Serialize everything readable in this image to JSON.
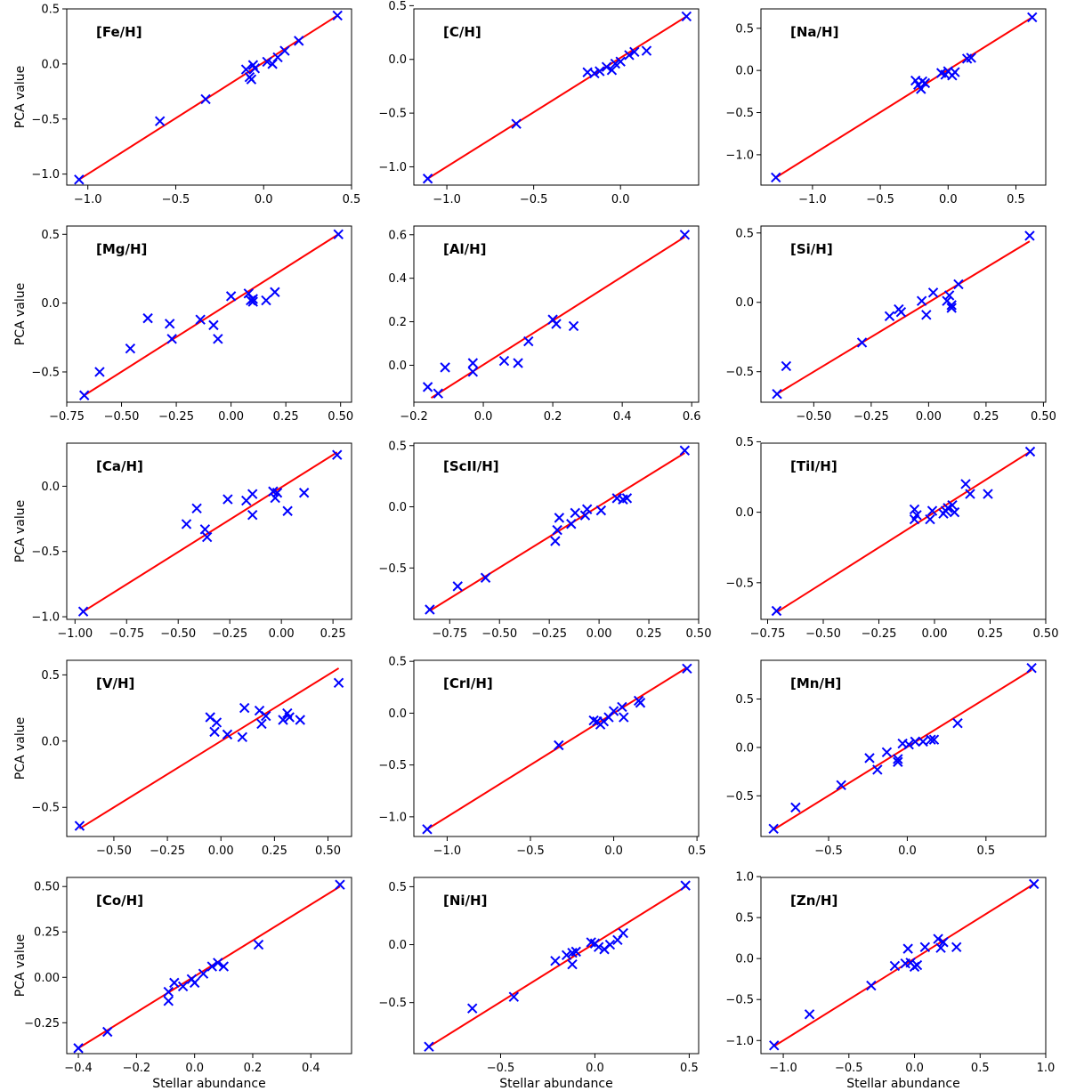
{
  "figure": {
    "xlabel": "Stellar abundance",
    "ylabel": "PCA value"
  },
  "colors": {
    "points": "#0000ff",
    "fit_line": "#ff0000",
    "axes": "#000000"
  },
  "chart_data": [
    {
      "type": "scatter",
      "label": "[Fe/H]",
      "xlim": [
        -1.12,
        0.5
      ],
      "ylim": [
        -1.1,
        0.5
      ],
      "xticks": [
        -1.0,
        -0.5,
        0.0,
        0.5
      ],
      "yticks": [
        -1.0,
        -0.5,
        0.0,
        0.5
      ],
      "xtick_labels": [
        "−1.0",
        "−0.5",
        "0.0",
        "0.5"
      ],
      "ytick_labels": [
        "−1.0",
        "−0.5",
        "0.0",
        "0.5"
      ],
      "fit_line": [
        [
          -1.05,
          -1.05
        ],
        [
          0.42,
          0.44
        ]
      ],
      "x": [
        -1.05,
        -0.59,
        -0.33,
        -0.1,
        -0.08,
        -0.07,
        -0.06,
        -0.05,
        0.02,
        0.05,
        0.08,
        0.12,
        0.2,
        0.42
      ],
      "y": [
        -1.05,
        -0.52,
        -0.32,
        -0.05,
        -0.12,
        -0.14,
        -0.01,
        -0.04,
        0.02,
        0.0,
        0.06,
        0.12,
        0.21,
        0.44
      ]
    },
    {
      "type": "scatter",
      "label": "[C/H]",
      "xlim": [
        -1.19,
        0.45
      ],
      "ylim": [
        -1.17,
        0.47
      ],
      "xticks": [
        -1.0,
        -0.5,
        0.0
      ],
      "yticks": [
        -1.0,
        -0.5,
        0.0,
        0.5
      ],
      "xtick_labels": [
        "−1.0",
        "−0.5",
        "0.0"
      ],
      "ytick_labels": [
        "−1.0",
        "−0.5",
        "0.0",
        "0.5"
      ],
      "fit_line": [
        [
          -1.11,
          -1.11
        ],
        [
          0.38,
          0.4
        ]
      ],
      "x": [
        -1.11,
        -0.6,
        -0.19,
        -0.15,
        -0.12,
        -0.08,
        -0.05,
        -0.03,
        0.0,
        0.05,
        0.08,
        0.15,
        0.38
      ],
      "y": [
        -1.11,
        -0.6,
        -0.12,
        -0.13,
        -0.11,
        -0.07,
        -0.1,
        -0.04,
        -0.02,
        0.04,
        0.07,
        0.08,
        0.4
      ]
    },
    {
      "type": "scatter",
      "label": "[Na/H]",
      "xlim": [
        -1.38,
        0.72
      ],
      "ylim": [
        -1.36,
        0.73
      ],
      "xticks": [
        -1.0,
        -0.5,
        0.0,
        0.5
      ],
      "yticks": [
        -1.0,
        -0.5,
        0.0,
        0.5
      ],
      "xtick_labels": [
        "−1.0",
        "−0.5",
        "0.0",
        "0.5"
      ],
      "ytick_labels": [
        "−1.0",
        "−0.5",
        "0.0",
        "0.5"
      ],
      "fit_line": [
        [
          -1.27,
          -1.27
        ],
        [
          0.62,
          0.63
        ]
      ],
      "x": [
        -1.27,
        -0.24,
        -0.22,
        -0.2,
        -0.19,
        -0.17,
        -0.05,
        -0.02,
        0.0,
        0.03,
        0.05,
        0.14,
        0.17,
        0.62
      ],
      "y": [
        -1.27,
        -0.12,
        -0.17,
        -0.22,
        -0.13,
        -0.15,
        -0.03,
        -0.05,
        -0.01,
        -0.06,
        -0.02,
        0.14,
        0.15,
        0.63
      ]
    },
    {
      "type": "scatter",
      "label": "[Mg/H]",
      "xlim": [
        -0.75,
        0.55
      ],
      "ylim": [
        -0.72,
        0.56
      ],
      "xticks": [
        -0.75,
        -0.5,
        -0.25,
        0.0,
        0.25,
        0.5
      ],
      "yticks": [
        -0.5,
        0.0,
        0.5
      ],
      "xtick_labels": [
        "−0.75",
        "−0.50",
        "−0.25",
        "0.00",
        "0.25",
        "0.50"
      ],
      "ytick_labels": [
        "−0.5",
        "0.0",
        "0.5"
      ],
      "fit_line": [
        [
          -0.67,
          -0.67
        ],
        [
          0.49,
          0.5
        ]
      ],
      "x": [
        -0.67,
        -0.6,
        -0.46,
        -0.38,
        -0.28,
        -0.27,
        -0.14,
        -0.08,
        -0.06,
        0.0,
        0.08,
        0.09,
        0.1,
        0.1,
        0.16,
        0.2,
        0.49
      ],
      "y": [
        -0.67,
        -0.5,
        -0.33,
        -0.11,
        -0.15,
        -0.26,
        -0.12,
        -0.16,
        -0.26,
        0.05,
        0.07,
        0.02,
        0.01,
        0.03,
        0.02,
        0.08,
        0.5
      ]
    },
    {
      "type": "scatter",
      "label": "[Al/H]",
      "xlim": [
        -0.2,
        0.62
      ],
      "ylim": [
        -0.17,
        0.64
      ],
      "xticks": [
        -0.2,
        0.0,
        0.2,
        0.4,
        0.6
      ],
      "yticks": [
        0.0,
        0.2,
        0.4,
        0.6
      ],
      "xtick_labels": [
        "−0.2",
        "0.0",
        "0.2",
        "0.4",
        "0.6"
      ],
      "ytick_labels": [
        "0.0",
        "0.2",
        "0.4",
        "0.6"
      ],
      "fit_line": [
        [
          -0.15,
          -0.15
        ],
        [
          0.58,
          0.59
        ]
      ],
      "x": [
        -0.16,
        -0.13,
        -0.11,
        -0.03,
        -0.03,
        0.06,
        0.1,
        0.13,
        0.2,
        0.21,
        0.26,
        0.58
      ],
      "y": [
        -0.1,
        -0.13,
        -0.01,
        -0.03,
        0.01,
        0.02,
        0.01,
        0.11,
        0.21,
        0.19,
        0.18,
        0.6
      ]
    },
    {
      "type": "scatter",
      "label": "[Si/H]",
      "xlim": [
        -0.73,
        0.51
      ],
      "ylim": [
        -0.72,
        0.55
      ],
      "xticks": [
        -0.5,
        -0.25,
        0.0,
        0.25,
        0.5
      ],
      "yticks": [
        -0.5,
        0.0,
        0.5
      ],
      "xtick_labels": [
        "−0.50",
        "−0.25",
        "0.00",
        "0.25",
        "0.50"
      ],
      "ytick_labels": [
        "−0.5",
        "0.0",
        "0.5"
      ],
      "fit_line": [
        [
          -0.66,
          -0.66
        ],
        [
          0.44,
          0.44
        ]
      ],
      "x": [
        -0.66,
        -0.62,
        -0.29,
        -0.17,
        -0.13,
        -0.12,
        -0.03,
        -0.01,
        0.02,
        0.08,
        0.09,
        0.1,
        0.1,
        0.13,
        0.44
      ],
      "y": [
        -0.66,
        -0.46,
        -0.29,
        -0.1,
        -0.05,
        -0.07,
        0.01,
        -0.09,
        0.07,
        0.01,
        0.05,
        -0.02,
        -0.04,
        0.13,
        0.48
      ]
    },
    {
      "type": "scatter",
      "label": "[Ca/H]",
      "xlim": [
        -1.04,
        0.34
      ],
      "ylim": [
        -1.02,
        0.33
      ],
      "xticks": [
        -1.0,
        -0.75,
        -0.5,
        -0.25,
        0.0,
        0.25
      ],
      "yticks": [
        -1.0,
        -0.5,
        0.0
      ],
      "xtick_labels": [
        "−1.00",
        "−0.75",
        "−0.50",
        "−0.25",
        "0.00",
        "0.25"
      ],
      "ytick_labels": [
        "−1.0",
        "−0.5",
        "0.0"
      ],
      "fit_line": [
        [
          -0.96,
          -0.96
        ],
        [
          0.27,
          0.26
        ]
      ],
      "x": [
        -0.96,
        -0.46,
        -0.41,
        -0.37,
        -0.36,
        -0.26,
        -0.17,
        -0.14,
        -0.14,
        -0.04,
        -0.03,
        -0.02,
        0.03,
        0.11,
        0.27
      ],
      "y": [
        -0.96,
        -0.29,
        -0.17,
        -0.33,
        -0.39,
        -0.1,
        -0.11,
        -0.22,
        -0.06,
        -0.04,
        -0.09,
        -0.05,
        -0.19,
        -0.05,
        0.24
      ]
    },
    {
      "type": "scatter",
      "label": "[ScII/H]",
      "xlim": [
        -0.93,
        0.5
      ],
      "ylim": [
        -0.92,
        0.52
      ],
      "xticks": [
        -0.75,
        -0.5,
        -0.25,
        0.0,
        0.25,
        0.5
      ],
      "yticks": [
        -0.5,
        0.0,
        0.5
      ],
      "xtick_labels": [
        "−0.75",
        "−0.50",
        "−0.25",
        "0.00",
        "0.25",
        "0.50"
      ],
      "ytick_labels": [
        "−0.5",
        "0.0",
        "0.5"
      ],
      "fit_line": [
        [
          -0.85,
          -0.85
        ],
        [
          0.43,
          0.44
        ]
      ],
      "x": [
        -0.85,
        -0.71,
        -0.57,
        -0.22,
        -0.21,
        -0.2,
        -0.14,
        -0.12,
        -0.07,
        -0.06,
        0.01,
        0.09,
        0.12,
        0.14,
        0.43
      ],
      "y": [
        -0.84,
        -0.65,
        -0.58,
        -0.28,
        -0.19,
        -0.09,
        -0.14,
        -0.05,
        -0.07,
        -0.02,
        -0.03,
        0.07,
        0.06,
        0.07,
        0.46
      ]
    },
    {
      "type": "scatter",
      "label": "[TiI/H]",
      "xlim": [
        -0.78,
        0.5
      ],
      "ylim": [
        -0.76,
        0.49
      ],
      "xticks": [
        -0.75,
        -0.5,
        -0.25,
        0.0,
        0.25,
        0.5
      ],
      "yticks": [
        -0.5,
        0.0,
        0.5
      ],
      "xtick_labels": [
        "−0.75",
        "−0.50",
        "−0.25",
        "0.00",
        "0.25",
        "0.50"
      ],
      "ytick_labels": [
        "−0.5",
        "0.0",
        "0.5"
      ],
      "fit_line": [
        [
          -0.71,
          -0.71
        ],
        [
          0.43,
          0.43
        ]
      ],
      "x": [
        -0.71,
        -0.09,
        -0.09,
        -0.08,
        -0.02,
        -0.01,
        0.04,
        0.05,
        0.06,
        0.08,
        0.09,
        0.14,
        0.16,
        0.24,
        0.43
      ],
      "y": [
        -0.7,
        0.02,
        -0.05,
        -0.02,
        -0.05,
        0.01,
        -0.01,
        0.01,
        0.03,
        0.05,
        0.0,
        0.2,
        0.13,
        0.13,
        0.43
      ]
    },
    {
      "type": "scatter",
      "label": "[V/H]",
      "xlim": [
        -0.72,
        0.61
      ],
      "ylim": [
        -0.72,
        0.61
      ],
      "xticks": [
        -0.5,
        -0.25,
        0.0,
        0.25,
        0.5
      ],
      "yticks": [
        -0.5,
        0.0,
        0.5
      ],
      "xtick_labels": [
        "−0.50",
        "−0.25",
        "0.00",
        "0.25",
        "0.50"
      ],
      "ytick_labels": [
        "−0.5",
        "0.0",
        "0.5"
      ],
      "fit_line": [
        [
          -0.66,
          -0.66
        ],
        [
          0.55,
          0.55
        ]
      ],
      "x": [
        -0.66,
        -0.05,
        -0.03,
        -0.02,
        0.03,
        0.1,
        0.11,
        0.18,
        0.19,
        0.21,
        0.29,
        0.31,
        0.32,
        0.37,
        0.55
      ],
      "y": [
        -0.64,
        0.18,
        0.07,
        0.14,
        0.05,
        0.03,
        0.25,
        0.23,
        0.13,
        0.19,
        0.16,
        0.21,
        0.18,
        0.16,
        0.44
      ]
    },
    {
      "type": "scatter",
      "label": "[CrI/H]",
      "xlim": [
        -1.2,
        0.51
      ],
      "ylim": [
        -1.19,
        0.51
      ],
      "xticks": [
        -1.0,
        -0.5,
        0.0,
        0.5
      ],
      "yticks": [
        -1.0,
        -0.5,
        0.0,
        0.5
      ],
      "xtick_labels": [
        "−1.0",
        "−0.5",
        "0.0",
        "0.5"
      ],
      "ytick_labels": [
        "−1.0",
        "−0.5",
        "0.0",
        "0.5"
      ],
      "fit_line": [
        [
          -1.12,
          -1.12
        ],
        [
          0.44,
          0.44
        ]
      ],
      "x": [
        -1.12,
        -0.33,
        -0.12,
        -0.1,
        -0.08,
        -0.06,
        -0.03,
        0.0,
        0.05,
        0.06,
        0.15,
        0.16,
        0.44
      ],
      "y": [
        -1.12,
        -0.31,
        -0.07,
        -0.08,
        -0.11,
        -0.08,
        -0.04,
        0.02,
        0.06,
        -0.04,
        0.12,
        0.1,
        0.43
      ]
    },
    {
      "type": "scatter",
      "label": "[Mn/H]",
      "xlim": [
        -0.93,
        0.88
      ],
      "ylim": [
        -0.92,
        0.9
      ],
      "xticks": [
        -0.5,
        0.0,
        0.5
      ],
      "yticks": [
        -0.5,
        0.0,
        0.5
      ],
      "xtick_labels": [
        "−0.5",
        "0.0",
        "0.5"
      ],
      "ytick_labels": [
        "−0.5",
        "0.0",
        "0.5"
      ],
      "fit_line": [
        [
          -0.85,
          -0.85
        ],
        [
          0.79,
          0.8
        ]
      ],
      "x": [
        -0.85,
        -0.71,
        -0.42,
        -0.24,
        -0.19,
        -0.13,
        -0.06,
        -0.06,
        -0.03,
        0.01,
        0.05,
        0.1,
        0.15,
        0.17,
        0.32,
        0.79
      ],
      "y": [
        -0.84,
        -0.62,
        -0.39,
        -0.11,
        -0.23,
        -0.05,
        -0.15,
        -0.12,
        0.04,
        0.03,
        0.06,
        0.06,
        0.08,
        0.08,
        0.25,
        0.82
      ]
    },
    {
      "type": "scatter",
      "label": "[Co/H]",
      "xlim": [
        -0.44,
        0.54
      ],
      "ylim": [
        -0.42,
        0.55
      ],
      "xticks": [
        -0.4,
        -0.2,
        0.0,
        0.2,
        0.4
      ],
      "yticks": [
        -0.25,
        0.0,
        0.25,
        0.5
      ],
      "xtick_labels": [
        "−0.4",
        "−0.2",
        "0.0",
        "0.2",
        "0.4"
      ],
      "ytick_labels": [
        "−0.25",
        "0.00",
        "0.25",
        "0.50"
      ],
      "fit_line": [
        [
          -0.4,
          -0.39
        ],
        [
          0.5,
          0.5
        ]
      ],
      "x": [
        -0.4,
        -0.3,
        -0.09,
        -0.09,
        -0.07,
        -0.04,
        -0.01,
        0.0,
        0.03,
        0.06,
        0.08,
        0.1,
        0.22,
        0.5
      ],
      "y": [
        -0.39,
        -0.3,
        -0.08,
        -0.13,
        -0.03,
        -0.05,
        -0.01,
        -0.03,
        0.02,
        0.06,
        0.08,
        0.06,
        0.18,
        0.51
      ]
    },
    {
      "type": "scatter",
      "label": "[Ni/H]",
      "xlim": [
        -0.96,
        0.55
      ],
      "ylim": [
        -0.94,
        0.58
      ],
      "xticks": [
        -0.5,
        0.0,
        0.5
      ],
      "yticks": [
        -0.5,
        0.0,
        0.5
      ],
      "xtick_labels": [
        "−0.5",
        "0.0",
        "0.5"
      ],
      "ytick_labels": [
        "−0.5",
        "0.0",
        "0.5"
      ],
      "fit_line": [
        [
          -0.88,
          -0.88
        ],
        [
          0.48,
          0.5
        ]
      ],
      "x": [
        -0.88,
        -0.65,
        -0.43,
        -0.21,
        -0.15,
        -0.12,
        -0.12,
        -0.1,
        -0.02,
        0.0,
        0.02,
        0.05,
        0.08,
        0.12,
        0.15,
        0.48
      ],
      "y": [
        -0.88,
        -0.55,
        -0.45,
        -0.14,
        -0.09,
        -0.17,
        -0.07,
        -0.06,
        0.02,
        0.01,
        -0.02,
        -0.04,
        0.0,
        0.04,
        0.1,
        0.51
      ]
    },
    {
      "type": "scatter",
      "label": "[Zn/H]",
      "xlim": [
        -1.17,
        1.0
      ],
      "ylim": [
        -1.16,
        0.99
      ],
      "xticks": [
        -1.0,
        -0.5,
        0.0,
        0.5,
        1.0
      ],
      "yticks": [
        -1.0,
        -0.5,
        0.0,
        0.5,
        1.0
      ],
      "xtick_labels": [
        "−1.0",
        "−0.5",
        "0.0",
        "0.5",
        "1.0"
      ],
      "ytick_labels": [
        "−1.0",
        "−0.5",
        "0.0",
        "0.5",
        "1.0"
      ],
      "fit_line": [
        [
          -1.07,
          -1.07
        ],
        [
          0.91,
          0.91
        ]
      ],
      "x": [
        -1.07,
        -0.8,
        -0.33,
        -0.15,
        -0.07,
        -0.05,
        -0.03,
        0.0,
        0.02,
        0.08,
        0.18,
        0.2,
        0.22,
        0.32,
        0.91
      ],
      "y": [
        -1.06,
        -0.68,
        -0.33,
        -0.09,
        -0.06,
        0.12,
        -0.05,
        -0.1,
        -0.08,
        0.14,
        0.24,
        0.13,
        0.2,
        0.14,
        0.91
      ]
    }
  ]
}
